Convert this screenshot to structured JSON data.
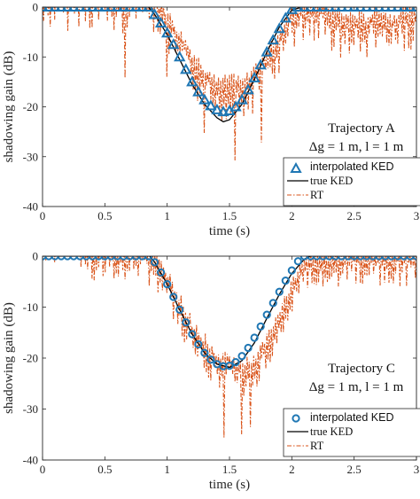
{
  "chart_data": [
    {
      "type": "line",
      "xlabel": "time (s)",
      "ylabel": "shadowing gain (dB)",
      "xlim": [
        0,
        3
      ],
      "ylim": [
        -40,
        0
      ],
      "xticks": [
        "0",
        "0.5",
        "1",
        "1.5",
        "2",
        "2.5",
        "3"
      ],
      "yticks": [
        "0",
        "-10",
        "-20",
        "-30",
        "-40"
      ],
      "annotation": [
        "Trajectory A",
        "Δg = 1 m, l = 1 m"
      ],
      "legend": [
        "interpolated KED",
        "true KED",
        "RT"
      ],
      "legend_position": "right, below annotation",
      "colors": {
        "interpolated": "#1f77b4",
        "true": "#000000",
        "rt": "#d95319"
      },
      "marker": "triangle",
      "series": [
        {
          "name": "interpolated KED",
          "x": [
            0,
            0.05,
            0.1,
            0.15,
            0.2,
            0.25,
            0.3,
            0.35,
            0.4,
            0.45,
            0.5,
            0.55,
            0.6,
            0.65,
            0.7,
            0.75,
            0.8,
            0.85,
            0.9,
            0.95,
            1.0,
            1.05,
            1.1,
            1.15,
            1.2,
            1.25,
            1.3,
            1.35,
            1.4,
            1.45,
            1.5,
            1.55,
            1.6,
            1.65,
            1.7,
            1.75,
            1.8,
            1.85,
            1.9,
            1.95,
            2.0,
            2.05,
            2.1,
            2.15,
            2.2,
            2.25,
            2.3,
            2.35,
            2.4,
            2.45,
            2.5,
            2.55,
            2.6,
            2.65,
            2.7,
            2.75,
            2.8,
            2.85,
            2.9,
            2.95,
            3.0
          ],
          "y": [
            0,
            0,
            0,
            0,
            0,
            0,
            0,
            0,
            0,
            0,
            0,
            0,
            0,
            0,
            0,
            0,
            0,
            0,
            -1.5,
            -3.2,
            -5.2,
            -7.5,
            -10,
            -12.5,
            -15,
            -17,
            -18.6,
            -19.8,
            -20.6,
            -21,
            -20.8,
            -20,
            -18.6,
            -16.6,
            -14.2,
            -11.6,
            -9,
            -6.6,
            -4.3,
            -2.2,
            -0.5,
            0,
            0,
            0,
            0,
            0,
            0,
            0,
            0,
            0,
            0,
            0,
            0,
            0,
            0,
            0,
            0,
            0,
            0,
            0,
            0
          ]
        },
        {
          "name": "true KED",
          "x": [
            0,
            0.85,
            0.9,
            1.0,
            1.1,
            1.2,
            1.3,
            1.4,
            1.45,
            1.5,
            1.6,
            1.7,
            1.8,
            1.9,
            2.0,
            2.08,
            3.0
          ],
          "y": [
            0,
            0,
            -1.5,
            -5.5,
            -10.5,
            -15.5,
            -19.5,
            -22.2,
            -23,
            -22.6,
            -19.5,
            -14.5,
            -9,
            -4,
            -0.6,
            0,
            0
          ]
        },
        {
          "name": "RT",
          "x": [
            0.0,
            0.1,
            0.2,
            0.3,
            0.4,
            0.5,
            0.6,
            0.65,
            0.7,
            0.8,
            0.9,
            1.0,
            1.1,
            1.2,
            1.3,
            1.4,
            1.5,
            1.6,
            1.7,
            1.8,
            1.9,
            2.0,
            2.1,
            2.2,
            2.3,
            2.4,
            2.5,
            2.6,
            2.7,
            2.8,
            2.9,
            3.0
          ],
          "y": [
            2,
            4,
            3,
            4,
            3,
            3,
            2,
            1,
            3,
            4,
            2,
            -2,
            -6,
            -10,
            -13,
            -16,
            -15,
            -16,
            -13,
            -10,
            -6,
            -1,
            0.5,
            0.5,
            -1,
            -2.5,
            -2.5,
            -3,
            -1,
            -3,
            -1,
            -2
          ]
        }
      ]
    },
    {
      "type": "line",
      "xlabel": "time (s)",
      "ylabel": "shadowing gain (dB)",
      "xlim": [
        0,
        3
      ],
      "ylim": [
        -40,
        0
      ],
      "xticks": [
        "0",
        "0.5",
        "1",
        "1.5",
        "2",
        "2.5",
        "3"
      ],
      "yticks": [
        "0",
        "-10",
        "-20",
        "-30",
        "-40"
      ],
      "annotation": [
        "Trajectory C",
        "Δg = 1 m, l = 1 m"
      ],
      "legend": [
        "interpolated KED",
        "true KED",
        "RT"
      ],
      "legend_position": "right, below annotation",
      "colors": {
        "interpolated": "#1f77b4",
        "true": "#000000",
        "rt": "#d95319"
      },
      "marker": "circle",
      "series": [
        {
          "name": "interpolated KED",
          "x": [
            0,
            0.05,
            0.1,
            0.15,
            0.2,
            0.25,
            0.3,
            0.35,
            0.4,
            0.45,
            0.5,
            0.55,
            0.6,
            0.65,
            0.7,
            0.75,
            0.8,
            0.85,
            0.9,
            0.95,
            1.0,
            1.05,
            1.1,
            1.15,
            1.2,
            1.25,
            1.3,
            1.35,
            1.4,
            1.45,
            1.5,
            1.55,
            1.6,
            1.65,
            1.7,
            1.75,
            1.8,
            1.85,
            1.9,
            1.95,
            2.0,
            2.05,
            2.1,
            2.15,
            2.2,
            2.25,
            2.3,
            2.35,
            2.4,
            2.45,
            2.5,
            2.55,
            2.6,
            2.65,
            2.7,
            2.75,
            2.8,
            2.85,
            2.9,
            2.95,
            3.0
          ],
          "y": [
            0,
            0,
            0,
            0,
            0,
            0,
            0,
            0,
            0,
            0,
            0,
            0,
            0,
            0,
            0,
            0,
            0,
            0,
            -1.2,
            -3.2,
            -5.5,
            -8,
            -10.5,
            -13,
            -15.3,
            -17.3,
            -19,
            -20.3,
            -21.2,
            -21.6,
            -21.5,
            -20.8,
            -19.6,
            -18,
            -16,
            -13.8,
            -11.5,
            -9.2,
            -7,
            -4.8,
            -2.8,
            -1,
            0,
            0,
            0,
            0,
            0,
            0,
            0,
            0,
            0,
            0,
            0,
            0,
            0,
            0,
            0,
            0,
            0,
            0,
            0
          ]
        },
        {
          "name": "true KED",
          "x": [
            0,
            0.86,
            0.9,
            1.0,
            1.1,
            1.2,
            1.3,
            1.4,
            1.5,
            1.6,
            1.7,
            1.8,
            1.9,
            2.0,
            2.1,
            2.15,
            3.0
          ],
          "y": [
            0,
            0,
            -1.2,
            -5.5,
            -10.5,
            -15.3,
            -19,
            -21.2,
            -21.8,
            -20.5,
            -17,
            -12.2,
            -7.5,
            -3.4,
            -0.6,
            0,
            0
          ]
        },
        {
          "name": "RT",
          "x": [
            0.0,
            0.15,
            0.3,
            0.4,
            0.5,
            0.6,
            0.7,
            0.8,
            0.9,
            1.0,
            1.1,
            1.2,
            1.3,
            1.4,
            1.5,
            1.6,
            1.7,
            1.8,
            1.9,
            2.0,
            2.1,
            2.2,
            2.3,
            2.4,
            2.5,
            2.6,
            2.7,
            2.8,
            2.9,
            3.0
          ],
          "y": [
            4,
            5,
            3,
            1,
            2,
            0.5,
            2,
            1,
            -1,
            -4,
            -9,
            -14,
            -17,
            -20,
            -21,
            -22,
            -21,
            -17,
            -12,
            -6,
            -1.5,
            0,
            0,
            0,
            0,
            0,
            0,
            0,
            0,
            0
          ]
        }
      ]
    }
  ]
}
